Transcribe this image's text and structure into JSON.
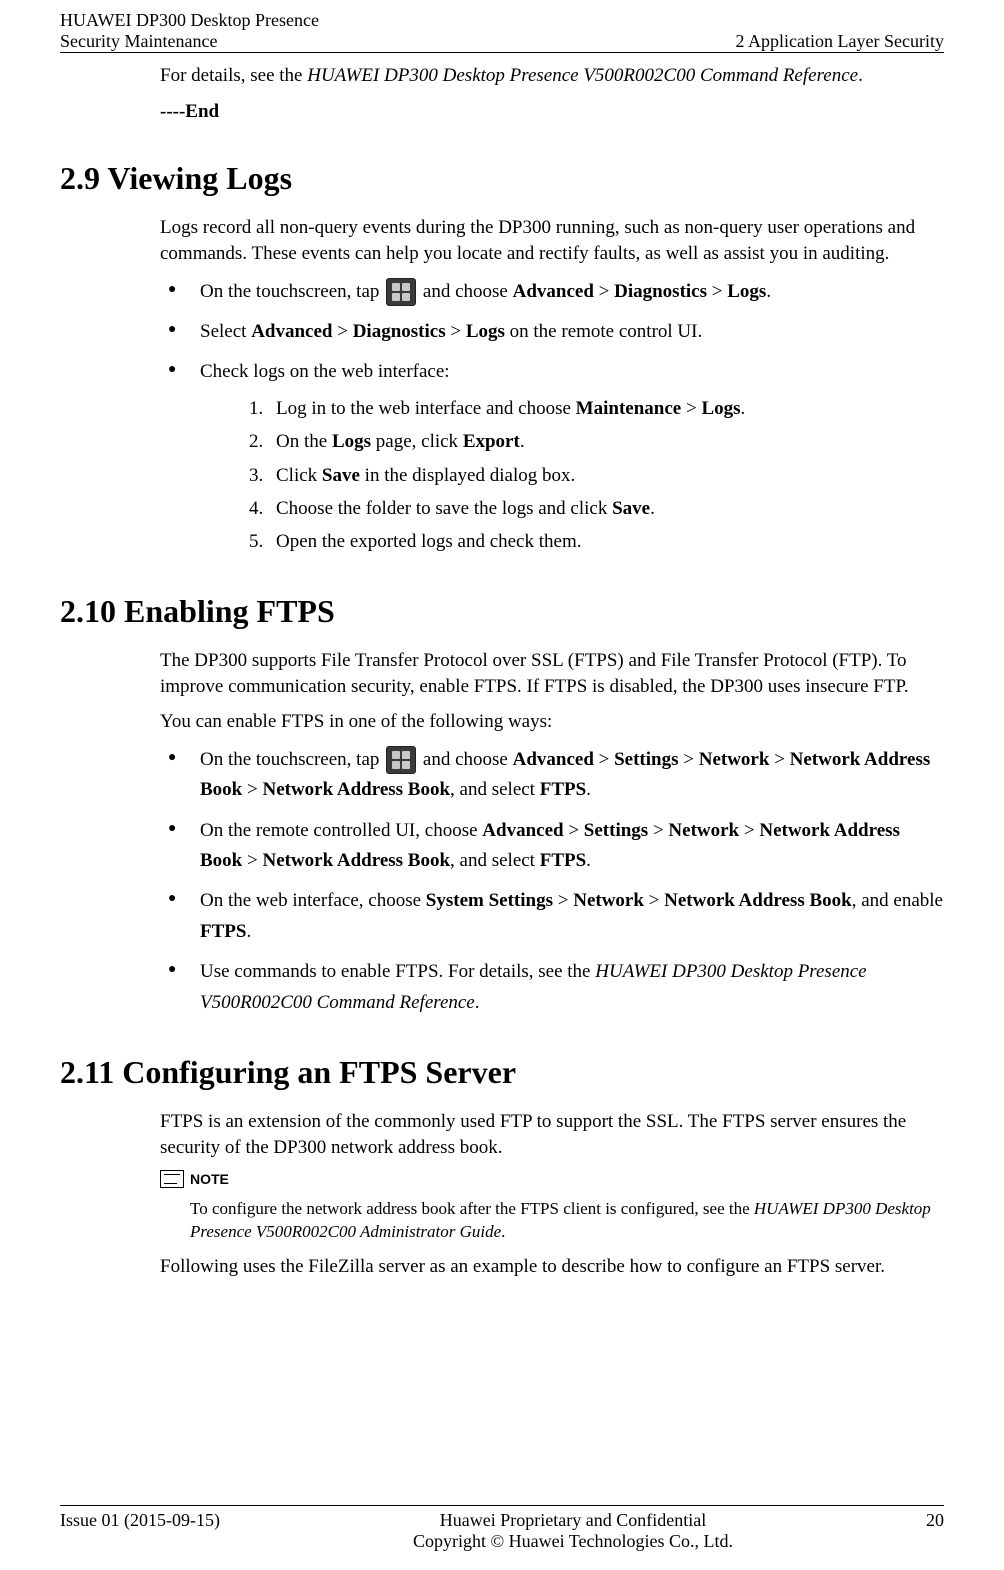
{
  "header": {
    "left_line1": "HUAWEI DP300 Desktop Presence",
    "left_line2": "Security Maintenance",
    "right": "2 Application Layer Security"
  },
  "intro": {
    "details_pre": "For details, see the ",
    "details_ref": "HUAWEI DP300 Desktop Presence V500R002C00 Command Reference",
    "details_post": ".",
    "end": "----End"
  },
  "s29": {
    "heading": "2.9 Viewing Logs",
    "para": "Logs record all non-query events during the DP300 running, such as non-query user operations and commands. These events can help you locate and rectify faults, as well as assist you in auditing.",
    "b1_pre": "On the touchscreen, tap ",
    "b1_mid": " and choose ",
    "b1_a": "Advanced",
    "b1_gt": " > ",
    "b1_b": "Diagnostics",
    "b1_c": "Logs",
    "b1_post": ".",
    "b2_pre": "Select ",
    "b2_a": "Advanced",
    "b2_gt": " > ",
    "b2_b": "Diagnostics",
    "b2_c": "Logs",
    "b2_post": " on the remote control UI.",
    "b3": "Check logs on the web interface:",
    "s1_pre": "Log in to the web interface and choose ",
    "s1_a": "Maintenance",
    "s1_gt": " > ",
    "s1_b": "Logs",
    "s1_post": ".",
    "s2_pre": "On the ",
    "s2_a": "Logs",
    "s2_mid": " page, click ",
    "s2_b": "Export",
    "s2_post": ".",
    "s3_pre": "Click ",
    "s3_a": "Save",
    "s3_post": " in the displayed dialog box.",
    "s4_pre": "Choose the folder to save the logs and click ",
    "s4_a": "Save",
    "s4_post": ".",
    "s5": "Open the exported logs and check them."
  },
  "s210": {
    "heading": "2.10 Enabling FTPS",
    "para1": "The DP300 supports File Transfer Protocol over SSL (FTPS) and File Transfer Protocol (FTP). To improve communication security, enable FTPS. If FTPS is disabled, the DP300 uses insecure FTP.",
    "para2": "You can enable FTPS in one of the following ways:",
    "b1_pre": "On the touchscreen, tap ",
    "b1_mid": " and choose ",
    "b1_a": "Advanced",
    "gt": " > ",
    "b1_b": "Settings",
    "b1_c": "Network",
    "b1_d": "Network Address Book",
    "b1_e": "Network Address Book",
    "b1_sel": ", and select ",
    "b1_f": "FTPS",
    "b1_post": ".",
    "b2_pre": "On the remote controlled UI, choose ",
    "b2_a": "Advanced",
    "b2_b": "Settings",
    "b2_c": "Network",
    "b2_d": "Network Address Book",
    "b2_e": "Network Address Book",
    "b2_sel": ", and select ",
    "b2_f": "FTPS",
    "b2_post": ".",
    "b3_pre": "On the web interface, choose ",
    "b3_a": "System Settings",
    "b3_b": "Network",
    "b3_c": "Network Address Book",
    "b3_mid": ", and enable ",
    "b3_d": "FTPS",
    "b3_post": ".",
    "b4_pre": "Use commands to enable FTPS. For details, see the ",
    "b4_ref": "HUAWEI DP300 Desktop Presence V500R002C00 Command Reference",
    "b4_post": "."
  },
  "s211": {
    "heading": "2.11 Configuring an FTPS Server",
    "para1": "FTPS is an extension of the commonly used FTP to support the SSL. The FTPS server ensures the security of the DP300 network address book.",
    "note_label": "NOTE",
    "note_pre": "To configure the network address book after the FTPS client is configured, see the ",
    "note_ref": "HUAWEI DP300 Desktop Presence V500R002C00 Administrator Guide",
    "note_post": ".",
    "para2": "Following uses the FileZilla server as an example to describe how to configure an FTPS server."
  },
  "footer": {
    "issue": "Issue 01 (2015-09-15)",
    "line1": "Huawei Proprietary and Confidential",
    "line2": "Copyright © Huawei Technologies Co., Ltd.",
    "page": "20"
  }
}
